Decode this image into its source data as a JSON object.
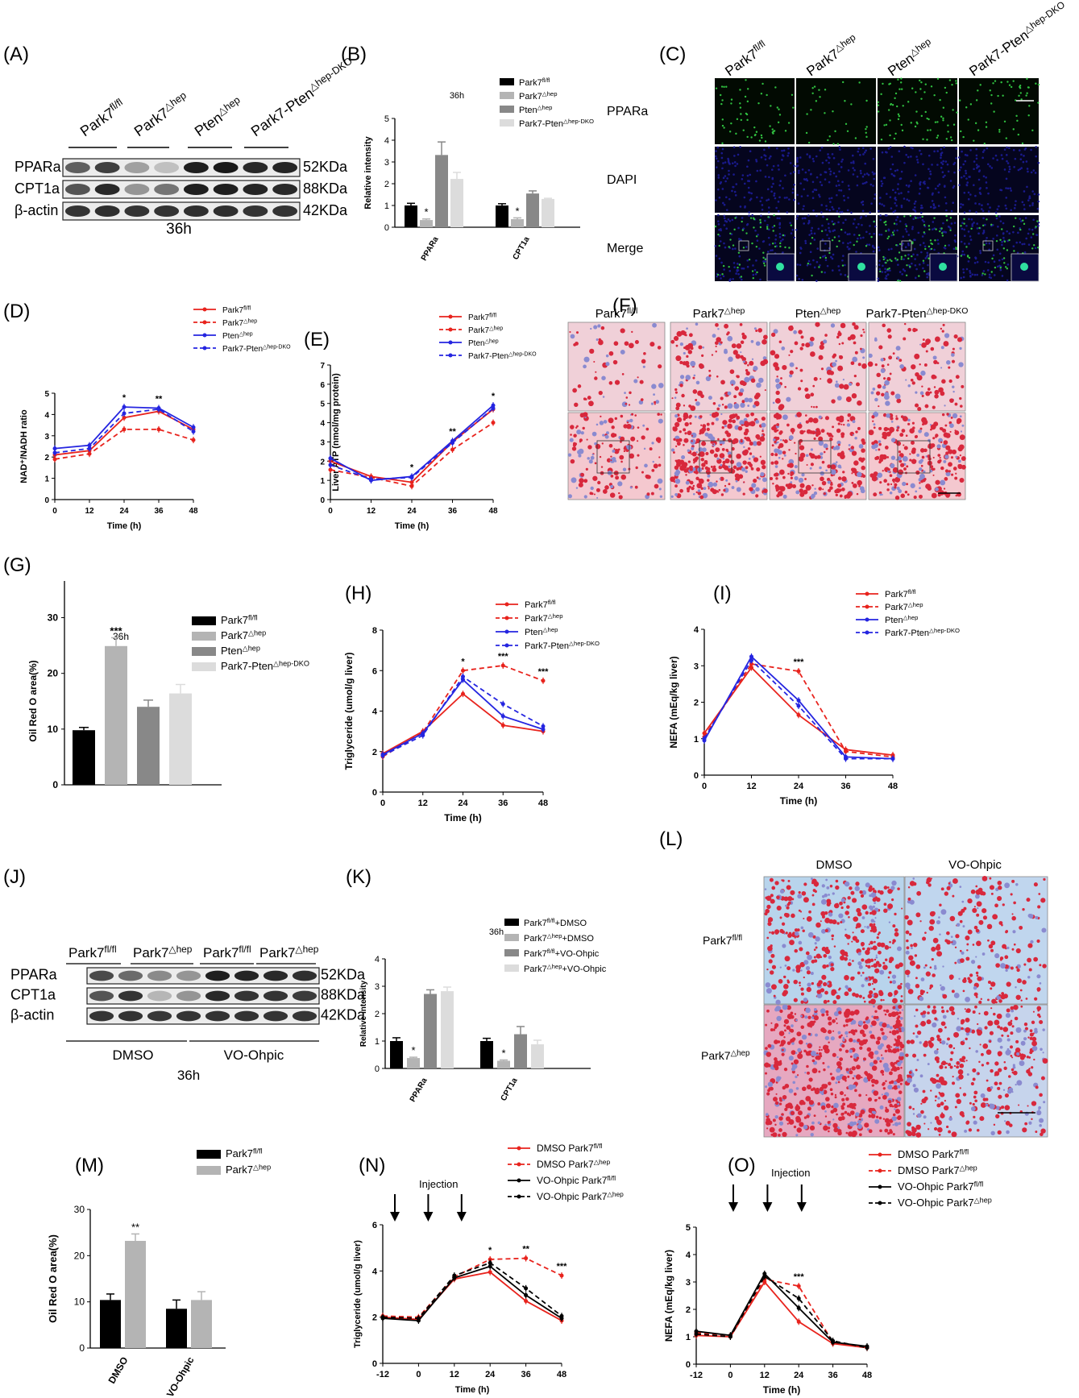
{
  "colors": {
    "red": "#e8231d",
    "blue": "#2525e0",
    "black": "#000000",
    "gray1": "#b4b4b4",
    "gray2": "#888888",
    "gray3": "#dcdcdc",
    "oil_red": "#d8283c",
    "dapi": "#1a1a8c",
    "ppar": "#30c040"
  },
  "panel_labels": [
    "(A)",
    "(B)",
    "(C)",
    "(D)",
    "(E)",
    "(F)",
    "(G)",
    "(H)",
    "(I)",
    "(J)",
    "(K)",
    "(L)",
    "(M)",
    "(N)",
    "(O)"
  ],
  "A": {
    "groups": [
      "Park7",
      "Park7",
      "Pten",
      "Park7-Pten"
    ],
    "group_sups": [
      "fl/fl",
      "△hep",
      "△hep",
      "△hep-DKO"
    ],
    "rows": [
      "PPARa",
      "CPT1a",
      "β-actin"
    ],
    "sizes": [
      "52KDa",
      "88KDa",
      "42KDa"
    ],
    "time": "36h"
  },
  "B": {
    "time": "36h",
    "ylabel": "Relative intensity",
    "legend": [
      "Park7",
      "Park7",
      "Pten",
      "Park7-Pten"
    ],
    "legend_sups": [
      "fl/fl",
      "△hep",
      "△hep",
      "△hep-DKO"
    ],
    "yticks": [
      "0",
      "1",
      "2",
      "3",
      "4",
      "5"
    ]
  },
  "C": {
    "cols": [
      "Park7",
      "Park7",
      "Pten",
      "Park7-Pten"
    ],
    "col_sups": [
      "fl/fl",
      "△hep",
      "△hep",
      "△hep-DKO"
    ],
    "rows": [
      "PPARa",
      "DAPI",
      "Merge"
    ]
  },
  "F": {
    "cols": [
      "Park7",
      "Park7",
      "Pten",
      "Park7-Pten"
    ],
    "col_sups": [
      "fl/fl",
      "△hep",
      "△hep",
      "△hep-DKO"
    ]
  },
  "J": {
    "groups": [
      "Park7",
      "Park7",
      "Park7",
      "Park7"
    ],
    "group_sups": [
      "fl/fl",
      "△hep",
      "fl/fl",
      "△hep"
    ],
    "rows": [
      "PPARa",
      "CPT1a",
      "β-actin"
    ],
    "sizes": [
      "52KDa",
      "88KDa",
      "42KDa"
    ],
    "treat": [
      "DMSO",
      "VO-Ohpic"
    ],
    "time": "36h"
  },
  "K": {
    "time": "36h",
    "ylabel": "Relative intensity",
    "legend": [
      "Park7",
      "Park7",
      "Park7",
      "Park7"
    ],
    "legend_sups": [
      "fl/fl",
      "△hep",
      "fl/fl",
      "△hep"
    ],
    "legend_tail": [
      "+DMSO",
      "+DMSO",
      "+VO-Ohpic",
      "+VO-Ohpic"
    ],
    "yticks": [
      "0",
      "1",
      "2",
      "3",
      "4"
    ]
  },
  "L": {
    "cols": [
      "DMSO",
      "VO-Ohpic"
    ],
    "rows": [
      "Park7",
      "Park7"
    ],
    "row_sups": [
      "fl/fl",
      "△hep"
    ]
  },
  "N": {
    "injection": "Injection"
  },
  "O": {
    "injection": "Injection"
  },
  "chart_data": [
    {
      "id": "B",
      "type": "bar",
      "categories": [
        "PPARa",
        "CPT1a"
      ],
      "ylabel": "Relative intensity",
      "ylim": [
        0,
        5
      ],
      "series": [
        {
          "name": "Park7fl/fl",
          "values": [
            1.0,
            1.0
          ],
          "err": [
            0.1,
            0.08
          ]
        },
        {
          "name": "Park7△hep",
          "values": [
            0.33,
            0.37
          ],
          "err": [
            0.05,
            0.06
          ]
        },
        {
          "name": "Pten△hep",
          "values": [
            3.32,
            1.55
          ],
          "err": [
            0.6,
            0.12
          ]
        },
        {
          "name": "Park7-Pten△hep-DKO",
          "values": [
            2.22,
            1.3
          ],
          "err": [
            0.3,
            0.03
          ]
        }
      ],
      "annotations": [
        {
          "group": 0,
          "series": 1,
          "text": "*"
        },
        {
          "group": 1,
          "series": 1,
          "text": "*"
        }
      ]
    },
    {
      "id": "D",
      "type": "line",
      "x": [
        0,
        12,
        24,
        36,
        48
      ],
      "xlabel": "Time (h)",
      "ylabel": "NAD⁺/NADH ratio",
      "ylim": [
        0,
        5
      ],
      "series": [
        {
          "name": "Park7fl/fl",
          "values": [
            2.1,
            2.3,
            3.85,
            4.15,
            3.3
          ]
        },
        {
          "name": "Park7△hep",
          "values": [
            1.9,
            2.15,
            3.3,
            3.3,
            2.8
          ]
        },
        {
          "name": "Pten△hep",
          "values": [
            2.4,
            2.55,
            4.35,
            4.3,
            3.4
          ]
        },
        {
          "name": "Park7-Pten△hep-DKO",
          "values": [
            2.2,
            2.4,
            4.05,
            4.25,
            3.2
          ]
        }
      ],
      "annotations": [
        {
          "x": 24,
          "text": "*"
        },
        {
          "x": 36,
          "text": "**"
        }
      ]
    },
    {
      "id": "E",
      "type": "line",
      "x": [
        0,
        12,
        24,
        36,
        48
      ],
      "xlabel": "Time (h)",
      "ylabel": "Liver ATP (nmol/mg protein)",
      "ylim": [
        0,
        7
      ],
      "series": [
        {
          "name": "Park7fl/fl",
          "values": [
            2.0,
            1.2,
            0.9,
            3.0,
            4.7
          ]
        },
        {
          "name": "Park7△hep",
          "values": [
            1.55,
            1.15,
            0.7,
            2.6,
            4.0
          ]
        },
        {
          "name": "Pten△hep",
          "values": [
            2.15,
            1.0,
            1.2,
            3.05,
            4.9
          ]
        },
        {
          "name": "Park7-Pten△hep-DKO",
          "values": [
            1.8,
            1.05,
            1.15,
            2.95,
            4.75
          ]
        }
      ],
      "annotations": [
        {
          "x": 24,
          "text": "*"
        },
        {
          "x": 36,
          "text": "**"
        },
        {
          "x": 48,
          "text": "*"
        }
      ]
    },
    {
      "id": "G",
      "type": "bar",
      "categories": [
        "Park7fl/fl",
        "Park7△hep",
        "Pten△hep",
        "Park7-Pten△hep-DKO"
      ],
      "title": "36h",
      "ylabel": "Oil Red O area(%)",
      "ylim": [
        0,
        30
      ],
      "values": [
        9.8,
        24.9,
        14.0,
        16.4
      ],
      "err": [
        0.5,
        1.5,
        1.2,
        1.6
      ],
      "annotations": [
        {
          "category": 1,
          "text": "***"
        }
      ]
    },
    {
      "id": "H",
      "type": "line",
      "x": [
        0,
        12,
        24,
        36,
        48
      ],
      "xlabel": "Time (h)",
      "ylabel": "Triglyceride (umol/g liver)",
      "ylim": [
        0,
        8
      ],
      "series": [
        {
          "name": "Park7fl/fl",
          "values": [
            1.9,
            3.0,
            4.85,
            3.3,
            3.0
          ]
        },
        {
          "name": "Park7△hep",
          "values": [
            1.75,
            2.95,
            6.0,
            6.25,
            5.5
          ]
        },
        {
          "name": "Pten△hep",
          "values": [
            1.85,
            2.9,
            5.55,
            3.75,
            3.1
          ]
        },
        {
          "name": "Park7-Pten△hep-DKO",
          "values": [
            1.8,
            2.8,
            5.7,
            4.35,
            3.25
          ]
        }
      ],
      "annotations": [
        {
          "x": 24,
          "text": "*"
        },
        {
          "x": 36,
          "text": "***"
        },
        {
          "x": 48,
          "text": "***"
        }
      ]
    },
    {
      "id": "I",
      "type": "line",
      "x": [
        0,
        12,
        24,
        36,
        48
      ],
      "xlabel": "Time (h)",
      "ylabel": "NEFA (mEq/kg liver)",
      "ylim": [
        0,
        4
      ],
      "series": [
        {
          "name": "Park7fl/fl",
          "values": [
            1.15,
            2.95,
            1.65,
            0.7,
            0.55
          ]
        },
        {
          "name": "Park7△hep",
          "values": [
            1.05,
            3.05,
            2.85,
            0.65,
            0.5
          ]
        },
        {
          "name": "Pten△hep",
          "values": [
            0.95,
            3.25,
            2.05,
            0.5,
            0.45
          ]
        },
        {
          "name": "Park7-Pten△hep-DKO",
          "values": [
            1.0,
            3.15,
            1.9,
            0.45,
            0.45
          ]
        }
      ],
      "annotations": [
        {
          "x": 24,
          "text": "***"
        }
      ]
    },
    {
      "id": "K",
      "type": "bar",
      "categories": [
        "PPARa",
        "CPT1a"
      ],
      "ylabel": "Relative intensity",
      "ylim": [
        0,
        4
      ],
      "series": [
        {
          "name": "Park7fl/fl+DMSO",
          "values": [
            1.0,
            1.0
          ],
          "err": [
            0.12,
            0.1
          ]
        },
        {
          "name": "Park7△hep+DMSO",
          "values": [
            0.38,
            0.28
          ],
          "err": [
            0.03,
            0.03
          ]
        },
        {
          "name": "Park7fl/fl+VO-Ohpic",
          "values": [
            2.72,
            1.25
          ],
          "err": [
            0.15,
            0.28
          ]
        },
        {
          "name": "Park7△hep+VO-Ohpic",
          "values": [
            2.82,
            0.88
          ],
          "err": [
            0.15,
            0.15
          ]
        }
      ],
      "annotations": [
        {
          "group": 0,
          "series": 1,
          "text": "*"
        },
        {
          "group": 1,
          "series": 1,
          "text": "*"
        }
      ]
    },
    {
      "id": "M",
      "type": "bar",
      "categories": [
        "DMSO",
        "VO-Ohpic"
      ],
      "ylabel": "Oil Red O area(%)",
      "ylim": [
        0,
        30
      ],
      "series": [
        {
          "name": "Park7fl/fl",
          "values": [
            10.4,
            8.5
          ],
          "err": [
            1.3,
            1.9
          ]
        },
        {
          "name": "Park7△hep",
          "values": [
            23.2,
            10.4
          ],
          "err": [
            1.5,
            1.8
          ]
        }
      ],
      "annotations": [
        {
          "group": 0,
          "series": 1,
          "text": "**"
        }
      ]
    },
    {
      "id": "N",
      "type": "line",
      "x": [
        -12,
        0,
        12,
        24,
        36,
        48
      ],
      "xlabel": "Time (h)",
      "ylabel": "Triglyceride (umol/g liver)",
      "ylim": [
        0,
        6
      ],
      "series": [
        {
          "name": "DMSO Park7fl/fl",
          "values": [
            2.0,
            1.9,
            3.65,
            3.95,
            2.7,
            1.85
          ]
        },
        {
          "name": "DMSO Park7△hep",
          "values": [
            2.05,
            2.0,
            3.75,
            4.5,
            4.55,
            3.8
          ]
        },
        {
          "name": "VO-Ohpic Park7fl/fl",
          "values": [
            1.95,
            1.85,
            3.7,
            4.2,
            2.95,
            1.95
          ]
        },
        {
          "name": "VO-Ohpic Park7△hep",
          "values": [
            2.0,
            1.95,
            3.8,
            4.35,
            3.25,
            2.05
          ]
        }
      ],
      "annotations": [
        {
          "x": 24,
          "text": "*"
        },
        {
          "x": 36,
          "text": "**"
        },
        {
          "x": 48,
          "text": "***"
        }
      ]
    },
    {
      "id": "O",
      "type": "line",
      "x": [
        -12,
        0,
        12,
        24,
        36,
        48
      ],
      "xlabel": "Time (h)",
      "ylabel": "NEFA (mEq/kg liver)",
      "ylim": [
        0,
        5
      ],
      "series": [
        {
          "name": "DMSO Park7fl/fl",
          "values": [
            1.05,
            1.0,
            3.0,
            1.55,
            0.75,
            0.6
          ]
        },
        {
          "name": "DMSO Park7△hep",
          "values": [
            1.15,
            1.05,
            3.1,
            2.85,
            0.8,
            0.6
          ]
        },
        {
          "name": "VO-Ohpic Park7fl/fl",
          "values": [
            1.2,
            1.05,
            3.3,
            2.05,
            0.8,
            0.65
          ]
        },
        {
          "name": "VO-Ohpic Park7△hep",
          "values": [
            1.1,
            1.0,
            3.2,
            2.4,
            0.85,
            0.6
          ]
        }
      ],
      "annotations": [
        {
          "x": 24,
          "text": "***"
        }
      ]
    }
  ]
}
